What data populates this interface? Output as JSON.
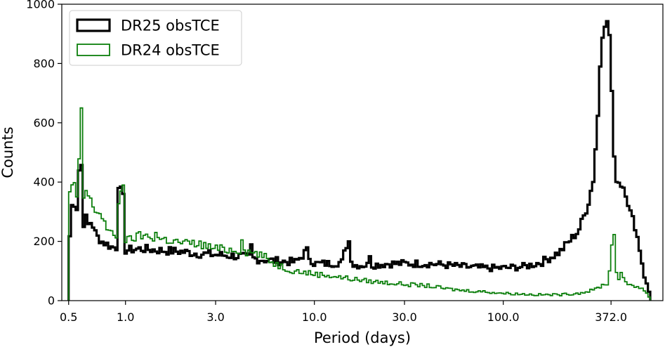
{
  "chart_data": {
    "type": "histogram",
    "xlabel": "Period (days)",
    "ylabel": "Counts",
    "x_scale": "log",
    "xlim": [
      0.46,
      700
    ],
    "ylim": [
      0,
      1000
    ],
    "x_ticks": [
      {
        "value": 0.5,
        "label": "0.5"
      },
      {
        "value": 1.0,
        "label": "1.0"
      },
      {
        "value": 3.0,
        "label": "3.0"
      },
      {
        "value": 10.0,
        "label": "10.0"
      },
      {
        "value": 30.0,
        "label": "30.0"
      },
      {
        "value": 100.0,
        "label": "100.0"
      },
      {
        "value": 372.0,
        "label": "372.0"
      }
    ],
    "y_ticks": [
      {
        "value": 0,
        "label": "0"
      },
      {
        "value": 200,
        "label": "200"
      },
      {
        "value": 400,
        "label": "400"
      },
      {
        "value": 600,
        "label": "600"
      },
      {
        "value": 800,
        "label": "800"
      },
      {
        "value": 1000,
        "label": "1000"
      }
    ],
    "grid": false,
    "legend_position": "top-left",
    "bin_range": [
      0.5,
      600
    ],
    "series": [
      {
        "name": "DR25 obsTCE",
        "color": "#000000",
        "anchors": [
          [
            0.5,
            0
          ],
          [
            0.505,
            200
          ],
          [
            0.52,
            320
          ],
          [
            0.54,
            330
          ],
          [
            0.55,
            300
          ],
          [
            0.565,
            390
          ],
          [
            0.575,
            555
          ],
          [
            0.59,
            400
          ],
          [
            0.6,
            260
          ],
          [
            0.62,
            280
          ],
          [
            0.64,
            250
          ],
          [
            0.66,
            270
          ],
          [
            0.7,
            220
          ],
          [
            0.75,
            200
          ],
          [
            0.8,
            190
          ],
          [
            0.85,
            180
          ],
          [
            0.9,
            180
          ],
          [
            0.93,
            380
          ],
          [
            0.97,
            360
          ],
          [
            1.0,
            170
          ],
          [
            1.2,
            175
          ],
          [
            1.5,
            170
          ],
          [
            2.0,
            165
          ],
          [
            2.5,
            158
          ],
          [
            3.0,
            155
          ],
          [
            4.0,
            150
          ],
          [
            5.0,
            140
          ],
          [
            6.0,
            135
          ],
          [
            7.0,
            132
          ],
          [
            8.0,
            130
          ],
          [
            9.0,
            165
          ],
          [
            10.0,
            125
          ],
          [
            12.0,
            125
          ],
          [
            14.0,
            130
          ],
          [
            15.0,
            200
          ],
          [
            16.0,
            120
          ],
          [
            20.0,
            120
          ],
          [
            25.0,
            125
          ],
          [
            30.0,
            125
          ],
          [
            40.0,
            125
          ],
          [
            50.0,
            120
          ],
          [
            60.0,
            115
          ],
          [
            80.0,
            110
          ],
          [
            100.0,
            110
          ],
          [
            130.0,
            115
          ],
          [
            160.0,
            130
          ],
          [
            200.0,
            165
          ],
          [
            250.0,
            235
          ],
          [
            280.0,
            320
          ],
          [
            300.0,
            410
          ],
          [
            320.0,
            660
          ],
          [
            330.0,
            880
          ],
          [
            350.0,
            955
          ],
          [
            370.0,
            880
          ],
          [
            380.0,
            580
          ],
          [
            390.0,
            420
          ],
          [
            410.0,
            400
          ],
          [
            440.0,
            380
          ],
          [
            470.0,
            300
          ],
          [
            500.0,
            250
          ],
          [
            530.0,
            170
          ],
          [
            560.0,
            80
          ],
          [
            590.0,
            30
          ]
        ],
        "spikes": [
          [
            0.93,
            380
          ],
          [
            0.96,
            360
          ],
          [
            4.6,
            190
          ],
          [
            9.2,
            180
          ],
          [
            15.3,
            200
          ],
          [
            19.5,
            150
          ]
        ]
      },
      {
        "name": "DR24 obsTCE",
        "color": "#0c7f0c",
        "anchors": [
          [
            0.5,
            0
          ],
          [
            0.505,
            355
          ],
          [
            0.515,
            380
          ],
          [
            0.53,
            405
          ],
          [
            0.55,
            360
          ],
          [
            0.565,
            390
          ],
          [
            0.575,
            650
          ],
          [
            0.59,
            420
          ],
          [
            0.6,
            345
          ],
          [
            0.62,
            370
          ],
          [
            0.64,
            350
          ],
          [
            0.66,
            330
          ],
          [
            0.7,
            300
          ],
          [
            0.75,
            290
          ],
          [
            0.8,
            240
          ],
          [
            0.85,
            220
          ],
          [
            0.9,
            220
          ],
          [
            0.93,
            370
          ],
          [
            0.97,
            390
          ],
          [
            1.0,
            200
          ],
          [
            1.2,
            220
          ],
          [
            1.5,
            210
          ],
          [
            2.0,
            195
          ],
          [
            2.5,
            190
          ],
          [
            3.0,
            175
          ],
          [
            4.0,
            170
          ],
          [
            5.0,
            160
          ],
          [
            6.0,
            130
          ],
          [
            7.0,
            110
          ],
          [
            8.0,
            100
          ],
          [
            10.0,
            90
          ],
          [
            12.0,
            85
          ],
          [
            15.0,
            75
          ],
          [
            20.0,
            65
          ],
          [
            25.0,
            60
          ],
          [
            30.0,
            55
          ],
          [
            40.0,
            50
          ],
          [
            50.0,
            40
          ],
          [
            60.0,
            35
          ],
          [
            80.0,
            30
          ],
          [
            100.0,
            25
          ],
          [
            150.0,
            20
          ],
          [
            200.0,
            20
          ],
          [
            250.0,
            25
          ],
          [
            300.0,
            35
          ],
          [
            330.0,
            50
          ],
          [
            360.0,
            60
          ],
          [
            385.0,
            250
          ],
          [
            400.0,
            70
          ],
          [
            420.0,
            90
          ],
          [
            440.0,
            60
          ],
          [
            500.0,
            50
          ],
          [
            550.0,
            40
          ],
          [
            580.0,
            20
          ],
          [
            600.0,
            10
          ]
        ],
        "spikes": [
          [
            0.56,
            350
          ],
          [
            0.58,
            650
          ],
          [
            0.98,
            390
          ],
          [
            1.45,
            230
          ],
          [
            4.1,
            205
          ]
        ]
      }
    ]
  }
}
